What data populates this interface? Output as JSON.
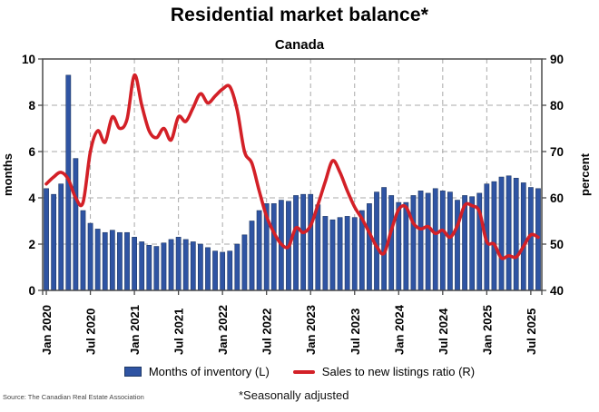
{
  "title": "Residential market balance*",
  "subtitle": "Canada",
  "source": "Source: The Canadian Real Estate Association",
  "footnote": "*Seasonally adjusted",
  "legend": {
    "bar_label": "Months of inventory (L)",
    "line_label": "Sales to new listings ratio (R)"
  },
  "colors": {
    "bar_fill": "#2f54a3",
    "bar_edge": "#1f3864",
    "line": "#d32027",
    "grid": "#a9a9a9",
    "frame": "#4a4a4a"
  },
  "chart_data": {
    "type": "bar+line combo",
    "x_tick_labels": [
      "Jan 2020",
      "Jul 2020",
      "Jan 2021",
      "Jul 2021",
      "Jan 2022",
      "Jul 2022",
      "Jan 2023",
      "Jul 2023",
      "Jan 2024",
      "Jul 2024",
      "Jan 2025",
      "Jul 2025"
    ],
    "x_tick_every_months": 6,
    "months_span": "Jan 2020 - Aug 2025",
    "left_axis": {
      "title": "months",
      "min": 0,
      "max": 10,
      "ticks": [
        0,
        2,
        4,
        6,
        8,
        10
      ]
    },
    "right_axis": {
      "title": "percent",
      "min": 40,
      "max": 90,
      "ticks": [
        40,
        50,
        60,
        70,
        80,
        90
      ]
    },
    "grid": "dashed horizontal and vertical",
    "legend_position": "bottom center",
    "series": [
      {
        "name": "Months of inventory (L)",
        "type": "bar",
        "axis": "left",
        "values": [
          4.4,
          4.15,
          4.6,
          9.3,
          5.7,
          3.45,
          2.9,
          2.65,
          2.5,
          2.6,
          2.5,
          2.5,
          2.3,
          2.1,
          1.95,
          1.9,
          2.05,
          2.2,
          2.3,
          2.2,
          2.1,
          2.0,
          1.85,
          1.7,
          1.65,
          1.7,
          2.0,
          2.4,
          3.0,
          3.45,
          3.75,
          3.75,
          3.9,
          3.85,
          4.1,
          4.15,
          4.15,
          3.7,
          3.2,
          3.05,
          3.15,
          3.2,
          3.15,
          3.45,
          3.75,
          4.25,
          4.45,
          4.1,
          3.8,
          3.8,
          4.1,
          4.3,
          4.2,
          4.4,
          4.3,
          4.25,
          3.9,
          4.1,
          4.05,
          4.2,
          4.6,
          4.7,
          4.9,
          4.95,
          4.85,
          4.65,
          4.45,
          4.4
        ]
      },
      {
        "name": "Sales to new listings ratio (R)",
        "type": "line",
        "axis": "right",
        "values": [
          63,
          64.5,
          65.5,
          64,
          60,
          59,
          70,
          74.5,
          72,
          77.5,
          75,
          77,
          86.5,
          80,
          74.5,
          73,
          75,
          72.5,
          77.5,
          76.5,
          79.5,
          82.5,
          80.5,
          82,
          83.5,
          84,
          79,
          70,
          67.5,
          61.5,
          56,
          52.5,
          50,
          49.5,
          53.5,
          52.5,
          54,
          58.5,
          63.5,
          68,
          65.5,
          61.5,
          58,
          55.5,
          52.5,
          49.5,
          48,
          53,
          57.5,
          58,
          54.5,
          53.3,
          53.8,
          52.3,
          53,
          51.5,
          54,
          58.4,
          58.3,
          57,
          50.5,
          50,
          47,
          47.5,
          47.2,
          49.5,
          52,
          51.5
        ]
      }
    ]
  }
}
